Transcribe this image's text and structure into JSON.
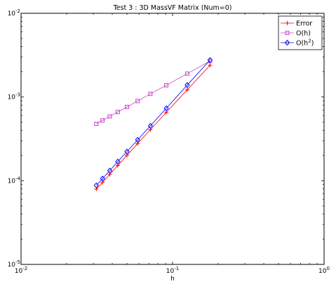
{
  "chart_data": {
    "type": "line",
    "title": "Test 3 : 3D MassVF Matrix (Num=0)",
    "xlabel": "h",
    "ylabel": "",
    "xscale": "log",
    "yscale": "log",
    "xlim": [
      0.01,
      1
    ],
    "ylim": [
      1e-05,
      0.01
    ],
    "x_ticks": [
      {
        "value": 0.01,
        "base": "10",
        "exp": "-2"
      },
      {
        "value": 0.1,
        "base": "10",
        "exp": "-1"
      },
      {
        "value": 1,
        "base": "10",
        "exp": "0"
      }
    ],
    "y_ticks": [
      {
        "value": 1e-05,
        "base": "10",
        "exp": "-5"
      },
      {
        "value": 0.0001,
        "base": "10",
        "exp": "-4"
      },
      {
        "value": 0.001,
        "base": "10",
        "exp": "-3"
      },
      {
        "value": 0.01,
        "base": "10",
        "exp": "-2"
      }
    ],
    "grid": false,
    "legend_position": "top-right",
    "x": [
      0.0314,
      0.0345,
      0.0385,
      0.0435,
      0.05,
      0.0588,
      0.0714,
      0.0909,
      0.125,
      0.1768
    ],
    "series": [
      {
        "name": "Error",
        "marker": "plus",
        "color": "#ff0000",
        "values": [
          7.95e-05,
          9.55e-05,
          0.000119,
          0.000152,
          0.000201,
          0.000278,
          0.000407,
          0.000654,
          0.00122,
          0.0024
        ]
      },
      {
        "name": "O(h)",
        "marker": "square",
        "color": "#cc44cc",
        "values": [
          0.000478,
          0.000525,
          0.000586,
          0.000662,
          0.000761,
          0.000895,
          0.00109,
          0.00138,
          0.0019,
          0.00269
        ]
      },
      {
        "name": "O(h^2)",
        "name_base": "O(h",
        "name_sup": "2",
        "name_tail": ")",
        "marker": "diamond",
        "color": "#0000ff",
        "values": [
          8.8e-05,
          0.000106,
          0.000132,
          0.000169,
          0.000223,
          0.000308,
          0.000452,
          0.000732,
          0.00139,
          0.00276
        ]
      }
    ]
  }
}
